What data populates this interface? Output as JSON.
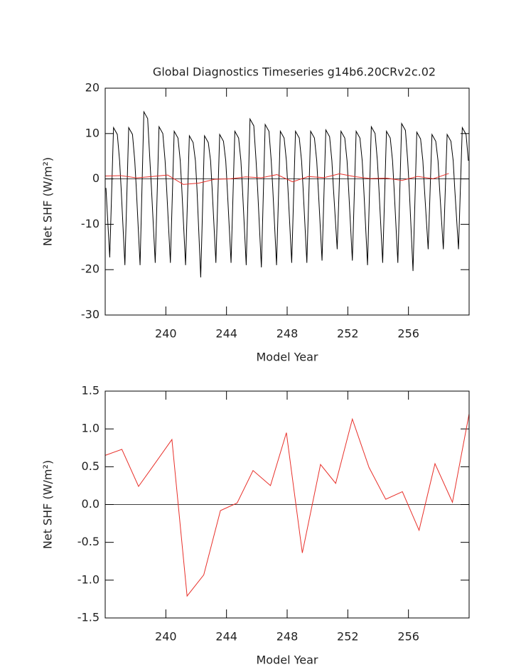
{
  "chart_data": [
    {
      "type": "line",
      "title": "Global Diagnostics Timeseries g14b6.20CRv2c.02",
      "xlabel": "Model Year",
      "ylabel": "Net SHF (W/m²)",
      "xlim": [
        236,
        260
      ],
      "ylim": [
        -30,
        20
      ],
      "xticks": [
        240,
        244,
        248,
        252,
        256
      ],
      "yticks": [
        -30,
        -20,
        -10,
        0,
        10,
        20
      ],
      "series": [
        {
          "color": "#000000",
          "x": [
            236.05,
            236.3,
            236.55,
            236.8,
            236.95,
            237.05,
            237.3,
            237.55,
            237.8,
            237.95,
            238.05,
            238.3,
            238.55,
            238.8,
            238.95,
            239.05,
            239.3,
            239.55,
            239.8,
            239.95,
            240.05,
            240.3,
            240.55,
            240.8,
            240.95,
            241.05,
            241.3,
            241.55,
            241.8,
            241.95,
            242.05,
            242.3,
            242.55,
            242.8,
            242.95,
            243.05,
            243.3,
            243.55,
            243.8,
            243.95,
            244.05,
            244.3,
            244.55,
            244.8,
            244.95,
            245.05,
            245.3,
            245.55,
            245.8,
            245.95,
            246.05,
            246.3,
            246.55,
            246.8,
            246.95,
            247.05,
            247.3,
            247.55,
            247.8,
            247.95,
            248.05,
            248.3,
            248.55,
            248.8,
            248.95,
            249.05,
            249.3,
            249.55,
            249.8,
            249.95,
            250.05,
            250.3,
            250.55,
            250.8,
            250.95,
            251.05,
            251.3,
            251.55,
            251.8,
            251.95,
            252.05,
            252.3,
            252.55,
            252.8,
            252.95,
            253.05,
            253.3,
            253.55,
            253.8,
            253.95,
            254.05,
            254.3,
            254.55,
            254.8,
            254.95,
            255.05,
            255.3,
            255.55,
            255.8,
            255.95,
            256.05,
            256.3,
            256.55,
            256.8,
            256.95,
            257.05,
            257.3,
            257.55,
            257.8,
            257.95,
            258.05,
            258.3,
            258.55,
            258.8,
            258.95,
            259.05,
            259.3,
            259.55,
            259.8,
            259.95
          ],
          "values": [
            -2,
            -17.3,
            11.3,
            9.8,
            4,
            -2,
            -19,
            11.3,
            9.8,
            4,
            -2,
            -19,
            14.8,
            13.3,
            4,
            -2,
            -18.5,
            11.5,
            10,
            4,
            -2,
            -18.5,
            10.5,
            9,
            4,
            -2,
            -19,
            9.5,
            8,
            4,
            -2,
            -21.7,
            9.5,
            8,
            4,
            -2,
            -18.5,
            9.8,
            8.3,
            4,
            -2,
            -18.5,
            10.5,
            9,
            4,
            -2,
            -19,
            13.2,
            11.7,
            4,
            -2,
            -19.5,
            12,
            10.5,
            4,
            -2,
            -19,
            10.5,
            9,
            4,
            -2,
            -18.5,
            10.5,
            9,
            4,
            -2,
            -18.5,
            10.5,
            9,
            4,
            -2,
            -18,
            10.8,
            9.3,
            4,
            -2,
            -15.5,
            10.5,
            9,
            4,
            -2,
            -18,
            10.5,
            9,
            4,
            -2,
            -19,
            11.5,
            10,
            4,
            -2,
            -18.5,
            10.5,
            9,
            4,
            -2,
            -18.5,
            12.2,
            10.7,
            4,
            -2,
            -20.3,
            10.3,
            8.8,
            4,
            -2,
            -15.5,
            9.8,
            8.3,
            4,
            -2,
            -15.5,
            9.8,
            8.3,
            4,
            -2,
            -15.5,
            11.3,
            9.8,
            4
          ]
        },
        {
          "color": "#e8302a",
          "x": [
            236.0,
            237.03,
            238.06,
            239.09,
            240.12,
            241.15,
            242.18,
            243.21,
            244.24,
            245.27,
            246.3,
            247.33,
            248.36,
            249.39,
            250.42,
            251.45,
            252.48,
            253.51,
            254.54,
            255.57,
            256.6,
            257.63,
            258.66
          ],
          "values": [
            0.65,
            0.73,
            0.24,
            0.52,
            0.86,
            -1.21,
            -0.93,
            -0.08,
            0.02,
            0.45,
            0.25,
            0.95,
            -0.64,
            0.53,
            0.28,
            1.13,
            0.49,
            0.07,
            0.17,
            -0.34,
            0.54,
            0.03,
            1.2
          ]
        }
      ]
    },
    {
      "type": "line",
      "xlabel": "Model Year",
      "ylabel": "Net SHF (W/m²)",
      "xlim": [
        236,
        260
      ],
      "ylim": [
        -1.5,
        1.5
      ],
      "xticks": [
        240,
        244,
        248,
        252,
        256
      ],
      "yticks": [
        -1.5,
        {
          "value": -1,
          "label": "-1.0"
        },
        -0.5,
        {
          "value": 0,
          "label": "0.0"
        },
        0.5,
        {
          "value": 1,
          "label": "1.0"
        },
        1.5
      ],
      "series": [
        {
          "color": "#e8302a",
          "x": [
            236.0,
            237.1,
            238.2,
            239.2,
            240.4,
            241.4,
            242.5,
            243.6,
            244.7,
            245.75,
            246.9,
            247.95,
            249.0,
            250.2,
            251.2,
            252.3,
            253.4,
            254.5,
            255.6,
            256.7,
            257.75,
            258.9,
            260.0
          ],
          "values": [
            0.65,
            0.73,
            0.24,
            0.52,
            0.86,
            -1.21,
            -0.93,
            -0.08,
            0.02,
            0.45,
            0.25,
            0.95,
            -0.64,
            0.53,
            0.28,
            1.13,
            0.49,
            0.07,
            0.17,
            -0.34,
            0.54,
            0.03,
            1.2
          ]
        }
      ]
    }
  ]
}
